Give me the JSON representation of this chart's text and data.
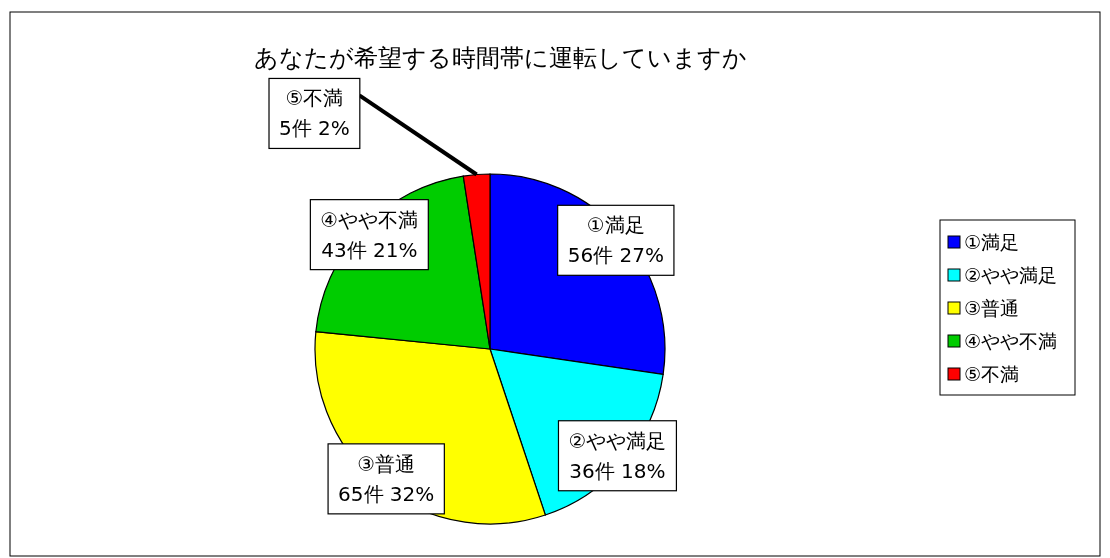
{
  "chart_data": {
    "type": "pie",
    "title": "あなたが希望する時間帯に運転していますか",
    "categories": [
      "①満足",
      "②やや満足",
      "③普通",
      "④やや不満",
      "⑤不満"
    ],
    "values": [
      56,
      36,
      65,
      43,
      5
    ],
    "colors": [
      "#0000ff",
      "#00ffff",
      "#ffff00",
      "#00cc00",
      "#ff0000"
    ],
    "value_labels": [
      "56件 27%",
      "36件 18%",
      "65件 32%",
      "43件 21%",
      "5件 2%"
    ],
    "legend": "right"
  }
}
